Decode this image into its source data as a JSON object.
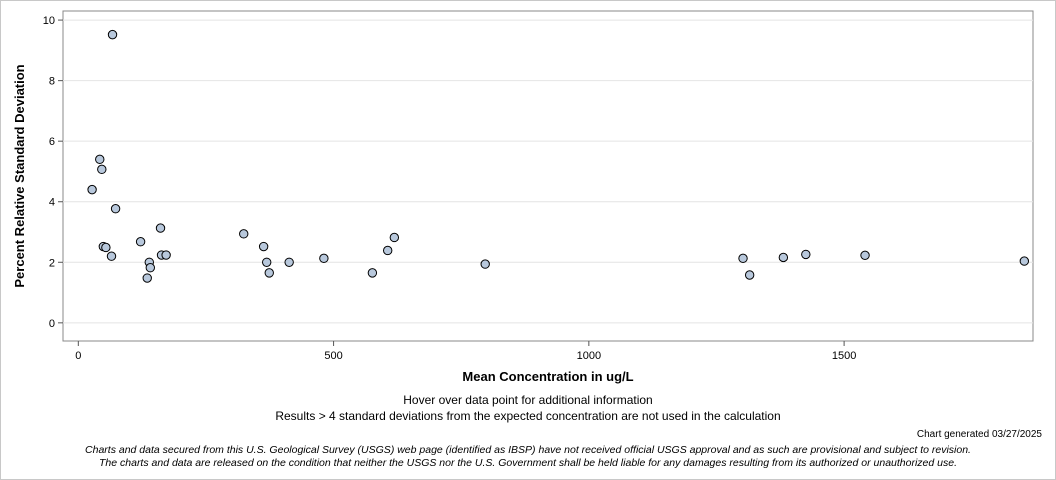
{
  "chart_data": {
    "type": "scatter",
    "xlabel": "Mean Concentration in ug/L",
    "ylabel": "Percent Relative Standard Deviation",
    "xlim": [
      -30,
      1870
    ],
    "ylim": [
      -0.6,
      10.3
    ],
    "xticks": [
      0,
      500,
      1000,
      1500
    ],
    "yticks": [
      0,
      2,
      4,
      6,
      8,
      10
    ],
    "grid": "horizontal",
    "marker_fill": "#b8c8dc",
    "marker_stroke": "#000000",
    "points": [
      {
        "x": 27,
        "y": 4.4
      },
      {
        "x": 42,
        "y": 5.4
      },
      {
        "x": 46,
        "y": 5.07
      },
      {
        "x": 49,
        "y": 2.52
      },
      {
        "x": 54,
        "y": 2.49
      },
      {
        "x": 65,
        "y": 2.2
      },
      {
        "x": 67,
        "y": 9.52
      },
      {
        "x": 73,
        "y": 3.77
      },
      {
        "x": 122,
        "y": 2.68
      },
      {
        "x": 135,
        "y": 1.48
      },
      {
        "x": 139,
        "y": 2.0
      },
      {
        "x": 141,
        "y": 1.82
      },
      {
        "x": 161,
        "y": 3.13
      },
      {
        "x": 163,
        "y": 2.24
      },
      {
        "x": 172,
        "y": 2.24
      },
      {
        "x": 324,
        "y": 2.94
      },
      {
        "x": 363,
        "y": 2.52
      },
      {
        "x": 369,
        "y": 2.0
      },
      {
        "x": 374,
        "y": 1.65
      },
      {
        "x": 413,
        "y": 2.0
      },
      {
        "x": 481,
        "y": 2.13
      },
      {
        "x": 576,
        "y": 1.65
      },
      {
        "x": 606,
        "y": 2.39
      },
      {
        "x": 619,
        "y": 2.82
      },
      {
        "x": 797,
        "y": 1.94
      },
      {
        "x": 1302,
        "y": 2.13
      },
      {
        "x": 1315,
        "y": 1.58
      },
      {
        "x": 1381,
        "y": 2.16
      },
      {
        "x": 1425,
        "y": 2.26
      },
      {
        "x": 1541,
        "y": 2.23
      },
      {
        "x": 1853,
        "y": 2.04
      }
    ]
  },
  "notes": {
    "hover": "Hover over data point for additional information",
    "exclusion": "Results > 4 standard deviations from the expected concentration are not used in the calculation"
  },
  "generated": "Chart generated 03/27/2025",
  "disclaimer": {
    "line1": "Charts and data secured from this U.S. Geological Survey (USGS) web page (identified as IBSP) have not received official USGS approval and as such are provisional and subject to revision.",
    "line2": "The charts and data are released on the condition that neither the USGS nor the U.S. Government shall be held liable for any damages resulting from its authorized or unauthorized use."
  }
}
